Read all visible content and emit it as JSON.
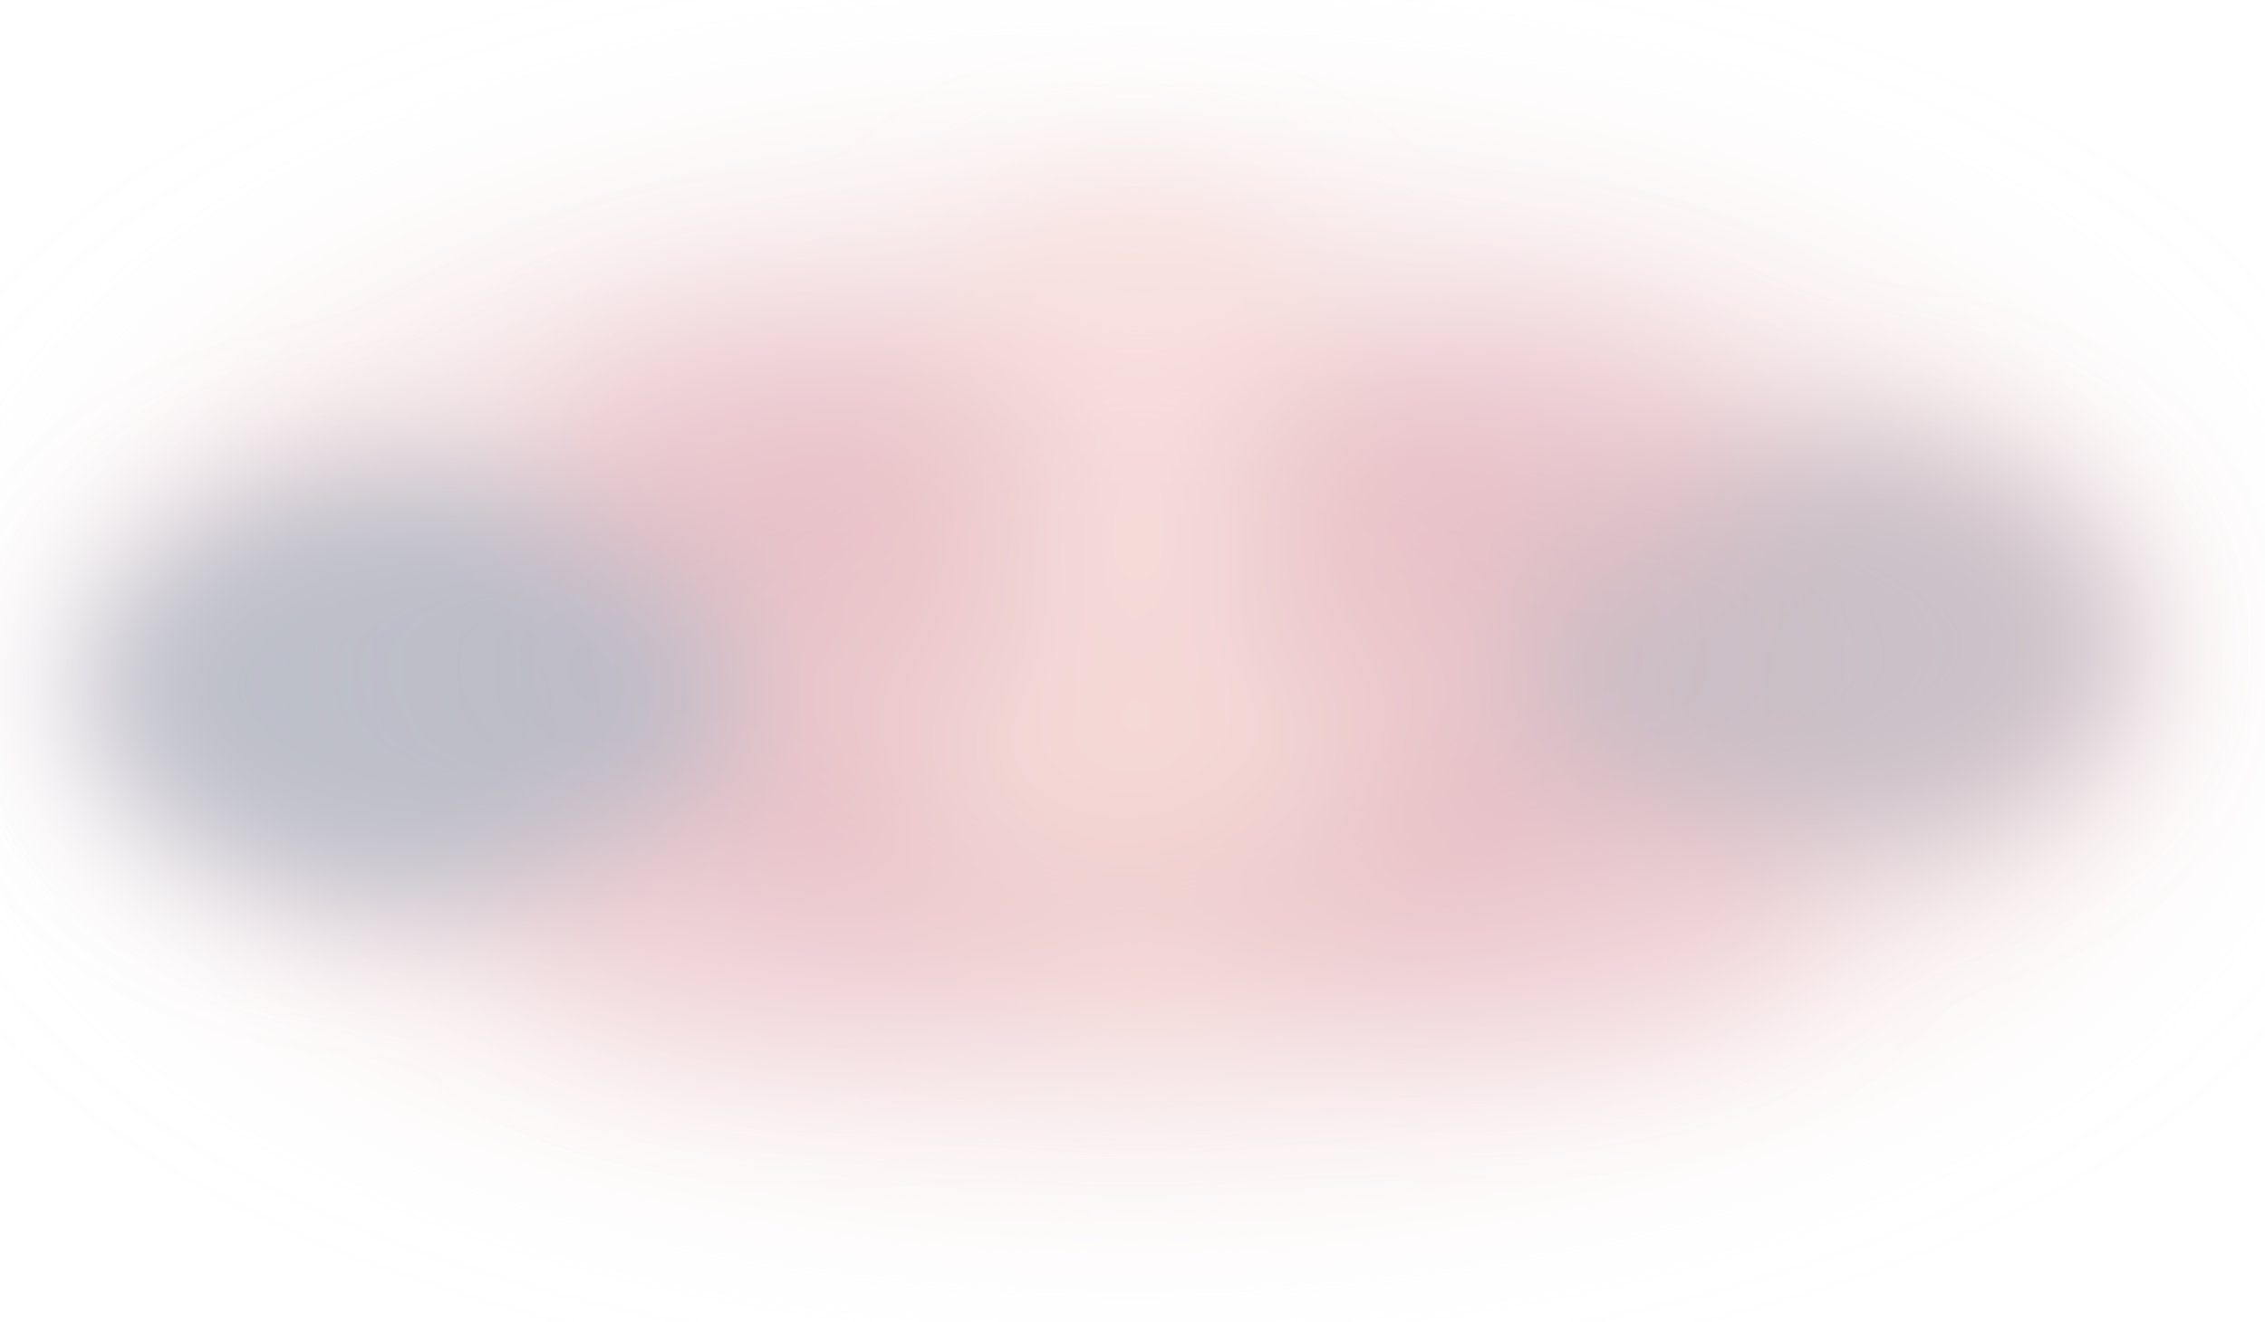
{
  "image": {
    "kind": "blurred-abstract",
    "background_color": "#ffffff",
    "dominant_colors": {
      "outer_white": "#ffffff",
      "pink_body": "#e9c2c8",
      "rose_accent": "#e6b9bf",
      "peach_highlight": "#f6ddd8",
      "slate_left": "#b8bcc7",
      "slate_right": "#c6bcc4"
    },
    "visible_text": []
  }
}
